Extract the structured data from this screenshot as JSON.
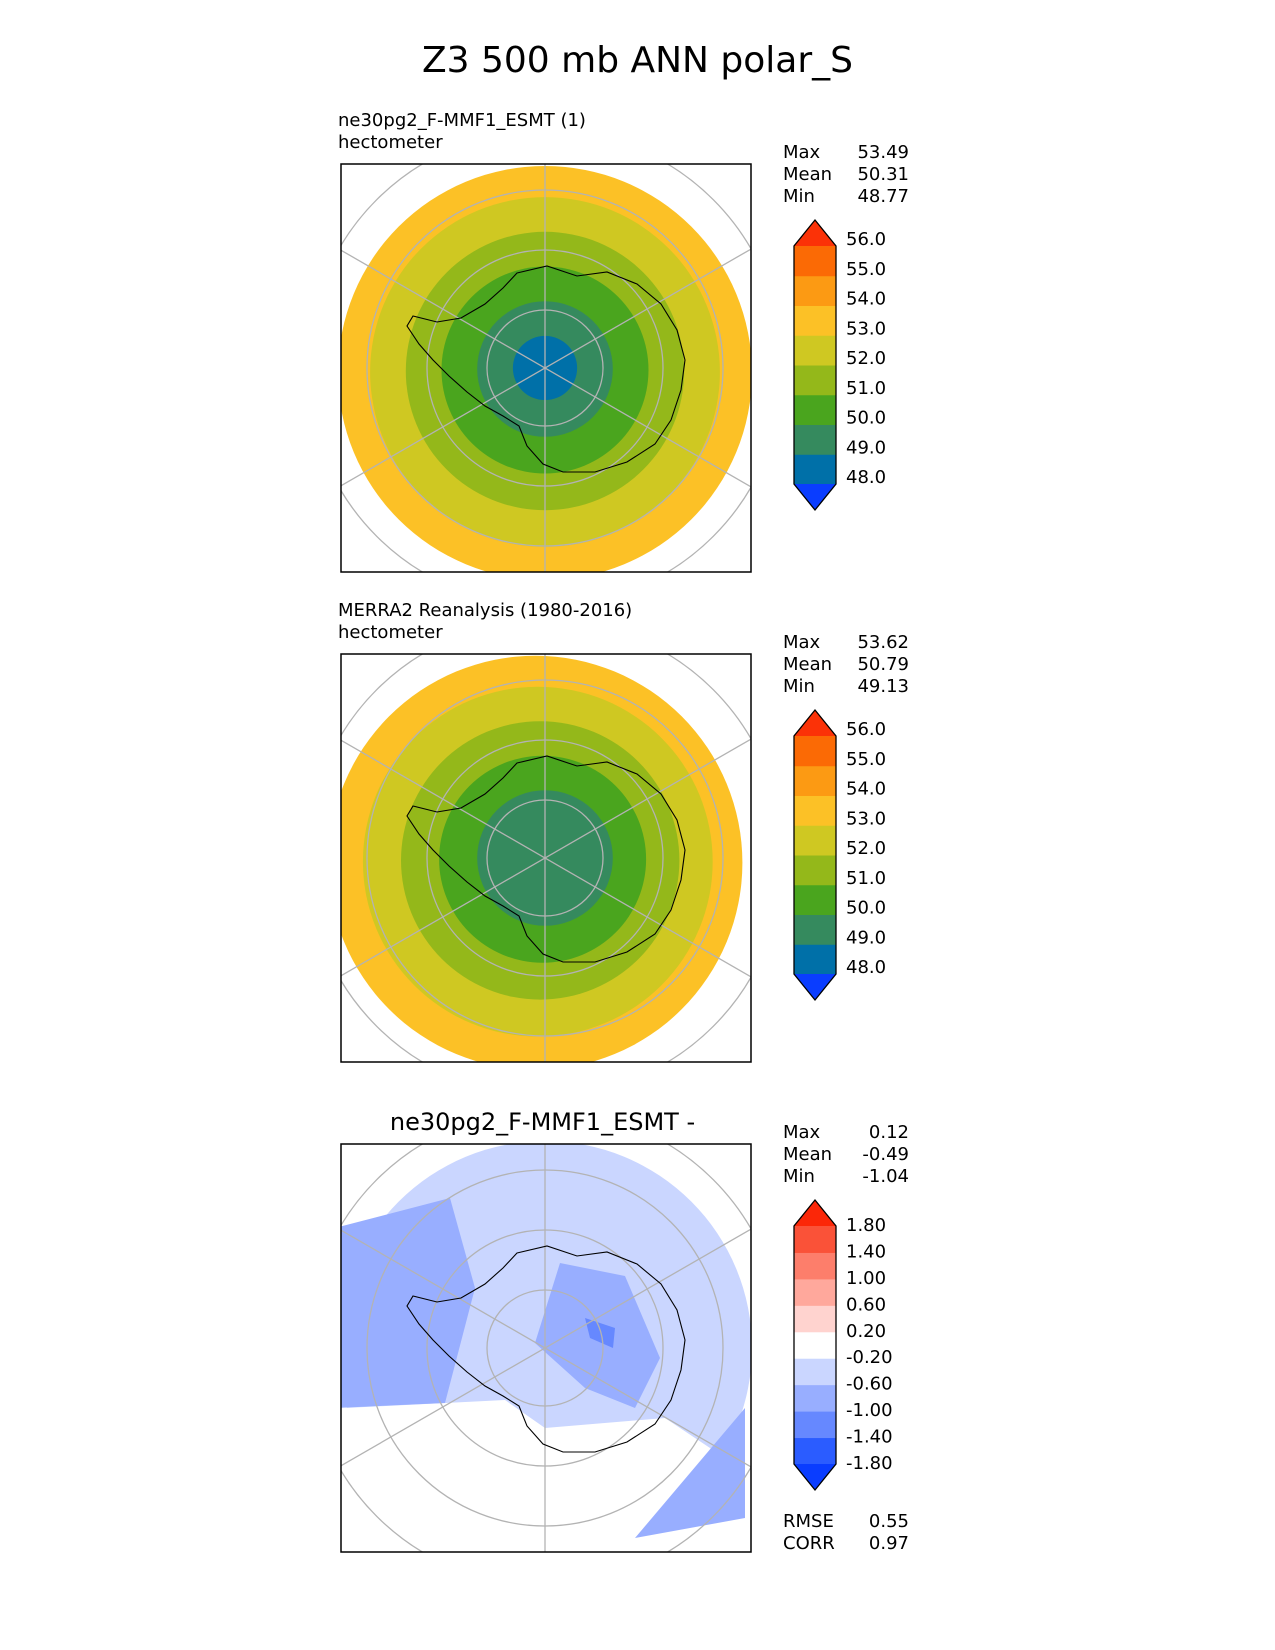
{
  "title": "Z3 500 mb ANN polar_S",
  "chart_data": [
    {
      "type": "heatmap",
      "projection": "south-polar-stereographic",
      "label_line1": "ne30pg2_F-MMF1_ESMT (1)",
      "label_line2": "hectometer",
      "stats": [
        {
          "name": "Max",
          "value": "53.49"
        },
        {
          "name": "Mean",
          "value": "50.31"
        },
        {
          "name": "Min",
          "value": "48.77"
        }
      ],
      "colorbar": {
        "levels": [
          "48.0",
          "49.0",
          "50.0",
          "51.0",
          "52.0",
          "53.0",
          "54.0",
          "55.0",
          "56.0"
        ],
        "colors": [
          "#0a3dff",
          "#0070a8",
          "#358a5e",
          "#4aa51e",
          "#94b81a",
          "#cfc822",
          "#fcc126",
          "#fc9a13",
          "#fb6a05",
          "#fb3207"
        ]
      },
      "rings": [
        {
          "value": 49.0,
          "color": "#0070a8"
        },
        {
          "value": 50.0,
          "color": "#358a5e"
        },
        {
          "value": 51.0,
          "color": "#4aa51e"
        },
        {
          "value": 52.0,
          "color": "#94b81a"
        },
        {
          "value": 53.0,
          "color": "#cfc822"
        },
        {
          "value": 54.0,
          "color": "#fcc126"
        }
      ]
    },
    {
      "type": "heatmap",
      "projection": "south-polar-stereographic",
      "label_line1": "MERRA2 Reanalysis (1980-2016)",
      "label_line2": "hectometer",
      "stats": [
        {
          "name": "Max",
          "value": "53.62"
        },
        {
          "name": "Mean",
          "value": "50.79"
        },
        {
          "name": "Min",
          "value": "49.13"
        }
      ],
      "colorbar": {
        "levels": [
          "48.0",
          "49.0",
          "50.0",
          "51.0",
          "52.0",
          "53.0",
          "54.0",
          "55.0",
          "56.0"
        ],
        "colors": [
          "#0a3dff",
          "#0070a8",
          "#358a5e",
          "#4aa51e",
          "#94b81a",
          "#cfc822",
          "#fcc126",
          "#fc9a13",
          "#fb6a05",
          "#fb3207"
        ]
      },
      "rings": [
        {
          "value": 50.0,
          "color": "#358a5e"
        },
        {
          "value": 51.0,
          "color": "#4aa51e"
        },
        {
          "value": 52.0,
          "color": "#94b81a"
        },
        {
          "value": 53.0,
          "color": "#cfc822"
        },
        {
          "value": 54.0,
          "color": "#fcc126"
        }
      ]
    },
    {
      "type": "heatmap",
      "projection": "south-polar-stereographic",
      "title": "ne30pg2_F-MMF1_ESMT -",
      "stats": [
        {
          "name": "Max",
          "value": "0.12"
        },
        {
          "name": "Mean",
          "value": "-0.49"
        },
        {
          "name": "Min",
          "value": "-1.04"
        }
      ],
      "colorbar": {
        "levels": [
          "-1.80",
          "-1.40",
          "-1.00",
          "-0.60",
          "-0.20",
          "0.20",
          "0.60",
          "1.00",
          "1.40",
          "1.80"
        ],
        "colors": [
          "#0a3dff",
          "#2b5cff",
          "#6688ff",
          "#98aeff",
          "#cad6ff",
          "#ffffff",
          "#ffd3cf",
          "#ffa89c",
          "#fd7e6b",
          "#fa5238",
          "#fb2708"
        ]
      },
      "metrics": [
        {
          "name": "RMSE",
          "value": "0.55"
        },
        {
          "name": "CORR",
          "value": "0.97"
        }
      ]
    }
  ]
}
